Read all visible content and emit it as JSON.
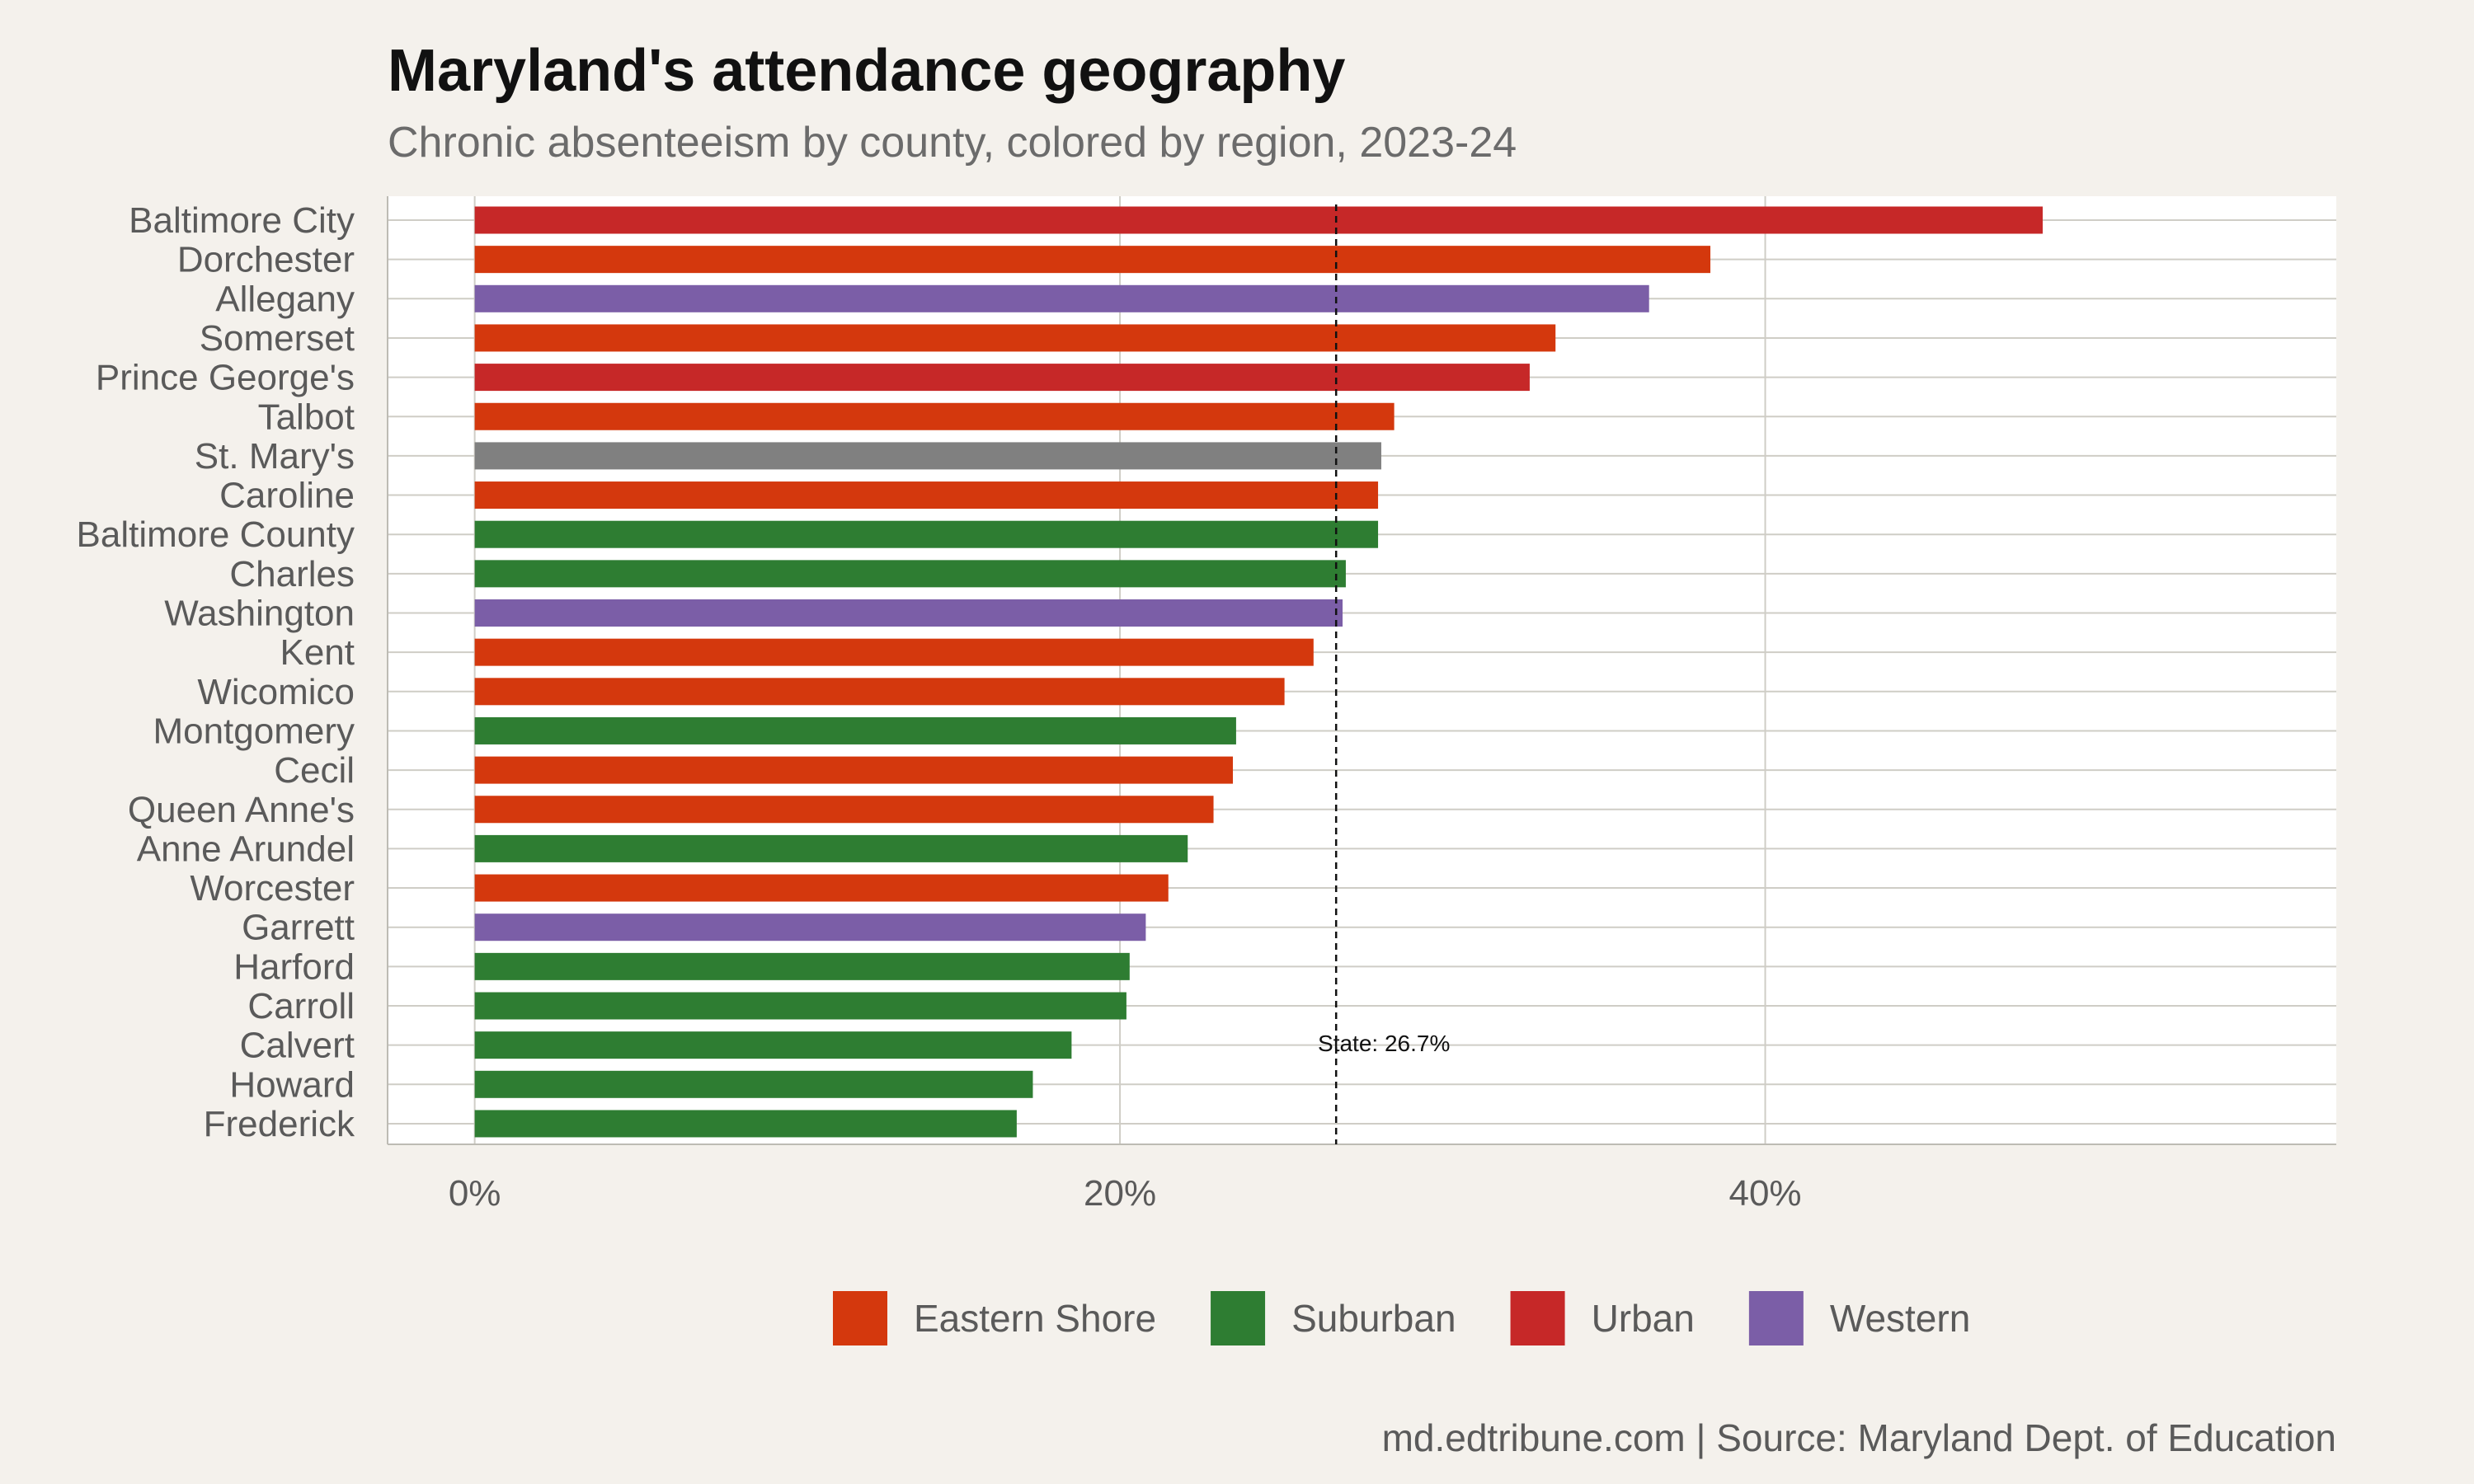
{
  "chart_data": {
    "type": "bar",
    "orientation": "horizontal",
    "title": "Maryland's attendance geography",
    "subtitle": "Chronic absenteeism by county, colored by region, 2023-24",
    "caption": "md.edtribune.com | Source: Maryland Dept. of Education",
    "xlabel": "",
    "ylabel": "",
    "xlim": [
      -2.7,
      57.7
    ],
    "x_ticks": [
      0,
      20,
      40
    ],
    "x_tick_labels": [
      "0%",
      "20%",
      "40%"
    ],
    "grid": true,
    "legend_position": "bottom",
    "legend": [
      {
        "name": "Eastern Shore",
        "color": "#d4380d"
      },
      {
        "name": "Suburban",
        "color": "#2e7d32"
      },
      {
        "name": "Urban",
        "color": "#c62828"
      },
      {
        "name": "Western",
        "color": "#7b5ea7"
      }
    ],
    "region_colors": {
      "Eastern Shore": "#d4380d",
      "Suburban": "#2e7d32",
      "Urban": "#c62828",
      "Western": "#7b5ea7",
      "Other": "#808080"
    },
    "reference_line": {
      "value": 26.7,
      "label": "State: 26.7%"
    },
    "bars": [
      {
        "county": "Baltimore City",
        "value": 48.6,
        "region": "Urban"
      },
      {
        "county": "Dorchester",
        "value": 38.3,
        "region": "Eastern Shore"
      },
      {
        "county": "Allegany",
        "value": 36.4,
        "region": "Western"
      },
      {
        "county": "Somerset",
        "value": 33.5,
        "region": "Eastern Shore"
      },
      {
        "county": "Prince George's",
        "value": 32.7,
        "region": "Urban"
      },
      {
        "county": "Talbot",
        "value": 28.5,
        "region": "Eastern Shore"
      },
      {
        "county": "St. Mary's",
        "value": 28.1,
        "region": "Other"
      },
      {
        "county": "Caroline",
        "value": 28.0,
        "region": "Eastern Shore"
      },
      {
        "county": "Baltimore County",
        "value": 28.0,
        "region": "Suburban"
      },
      {
        "county": "Charles",
        "value": 27.0,
        "region": "Suburban"
      },
      {
        "county": "Washington",
        "value": 26.9,
        "region": "Western"
      },
      {
        "county": "Kent",
        "value": 26.0,
        "region": "Eastern Shore"
      },
      {
        "county": "Wicomico",
        "value": 25.1,
        "region": "Eastern Shore"
      },
      {
        "county": "Montgomery",
        "value": 23.6,
        "region": "Suburban"
      },
      {
        "county": "Cecil",
        "value": 23.5,
        "region": "Eastern Shore"
      },
      {
        "county": "Queen Anne's",
        "value": 22.9,
        "region": "Eastern Shore"
      },
      {
        "county": "Anne Arundel",
        "value": 22.1,
        "region": "Suburban"
      },
      {
        "county": "Worcester",
        "value": 21.5,
        "region": "Eastern Shore"
      },
      {
        "county": "Garrett",
        "value": 20.8,
        "region": "Western"
      },
      {
        "county": "Harford",
        "value": 20.3,
        "region": "Suburban"
      },
      {
        "county": "Carroll",
        "value": 20.2,
        "region": "Suburban"
      },
      {
        "county": "Calvert",
        "value": 18.5,
        "region": "Suburban"
      },
      {
        "county": "Howard",
        "value": 17.3,
        "region": "Suburban"
      },
      {
        "county": "Frederick",
        "value": 16.8,
        "region": "Suburban"
      }
    ]
  }
}
